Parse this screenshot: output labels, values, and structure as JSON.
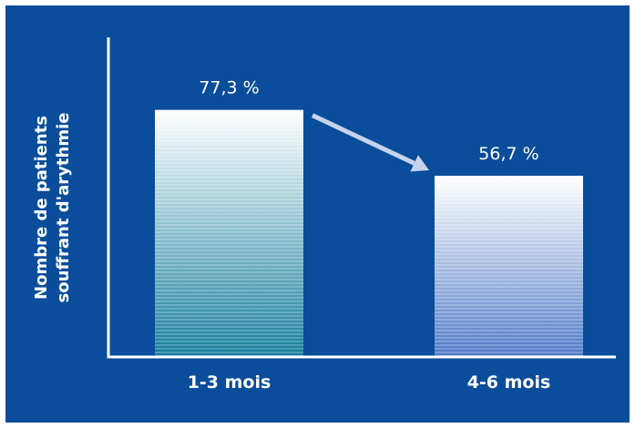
{
  "chart_data": {
    "type": "bar",
    "categories": [
      "1-3 mois",
      "4-6 mois"
    ],
    "values": [
      77.3,
      56.7
    ],
    "data_labels": [
      "77,3 %",
      "56,7 %"
    ],
    "title": "",
    "xlabel": "",
    "ylabel_lines": [
      "Nombre de patients",
      "souffrant d'arythmie"
    ],
    "ylim": [
      0,
      100
    ],
    "grid": false,
    "annotations": [
      "arrow from first bar to second bar indicating decrease"
    ],
    "colors": {
      "background": "#0a4d9a",
      "bar1_top": "#ffffff",
      "bar1_bottom": "#147d9c",
      "bar2_top": "#ffffff",
      "bar2_bottom": "#4f79c6",
      "arrow": "#c7d3ec",
      "axis": "#ffffff"
    }
  }
}
